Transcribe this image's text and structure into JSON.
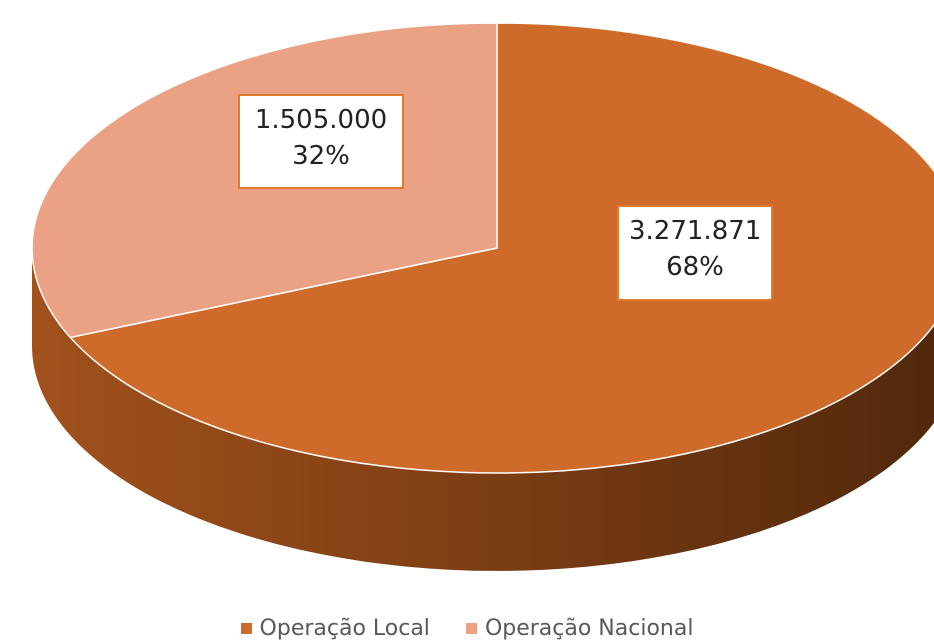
{
  "chart_data": {
    "type": "pie",
    "title": "",
    "labels": [
      "Operação Local",
      "Operação Nacional"
    ],
    "values": [
      3271871,
      1505000
    ],
    "value_labels": [
      "3.271.871",
      "1.505.000"
    ],
    "percent_labels": [
      "68%",
      "32%"
    ],
    "colors": [
      "#cf6b2a",
      "#eba183"
    ],
    "legend_position": "bottom",
    "style": "3d"
  }
}
